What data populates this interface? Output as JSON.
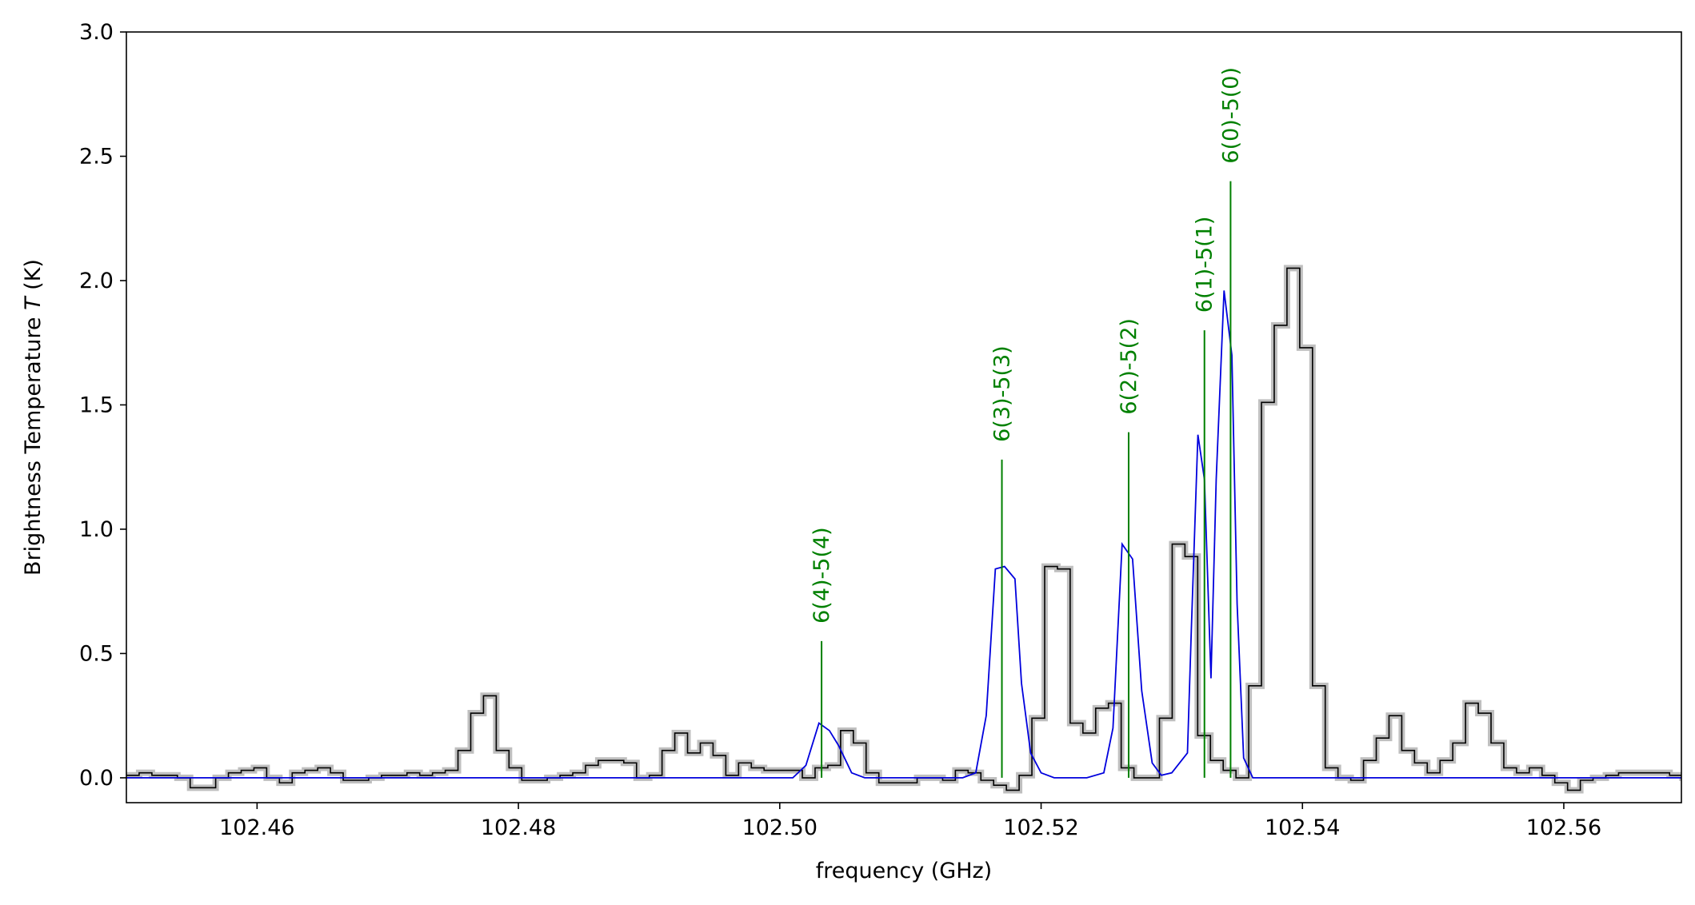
{
  "chart_data": {
    "type": "line",
    "xlabel": "frequency (GHz)",
    "ylabel_prefix": "Brightness Temperature ",
    "ylabel_var": "T",
    "ylabel_suffix": " (K)",
    "xlim": [
      102.45,
      102.569
    ],
    "ylim": [
      -0.1,
      3.0
    ],
    "xticks": [
      102.46,
      102.48,
      102.5,
      102.52,
      102.54,
      102.56
    ],
    "xtick_labels": [
      "102.46",
      "102.48",
      "102.50",
      "102.52",
      "102.54",
      "102.56"
    ],
    "yticks": [
      0.0,
      0.5,
      1.0,
      1.5,
      2.0,
      2.5,
      3.0
    ],
    "ytick_labels": [
      "0.0",
      "0.5",
      "1.0",
      "1.5",
      "2.0",
      "2.5",
      "3.0"
    ],
    "grid": false,
    "colors": {
      "spectrum": "#000000",
      "spectrum_shade": "#aaaaaa",
      "model": "#0000dd",
      "lines": "#008000",
      "axes": "#000000"
    },
    "series": [
      {
        "role": "observed-spectrum",
        "style": "step",
        "x0": 102.45,
        "dx": 0.000976,
        "values": [
          0.01,
          0.02,
          0.01,
          0.01,
          0.0,
          -0.04,
          -0.04,
          0.0,
          0.02,
          0.03,
          0.04,
          0.0,
          -0.02,
          0.02,
          0.03,
          0.04,
          0.02,
          -0.01,
          -0.01,
          0.0,
          0.01,
          0.01,
          0.02,
          0.01,
          0.02,
          0.03,
          0.11,
          0.26,
          0.33,
          0.11,
          0.04,
          -0.01,
          -0.01,
          0.0,
          0.01,
          0.02,
          0.05,
          0.07,
          0.07,
          0.06,
          0.0,
          0.01,
          0.11,
          0.18,
          0.1,
          0.14,
          0.09,
          0.01,
          0.06,
          0.04,
          0.03,
          0.03,
          0.03,
          0.0,
          0.04,
          0.05,
          0.19,
          0.14,
          0.02,
          -0.02,
          -0.02,
          -0.02,
          0.0,
          0.0,
          -0.01,
          0.03,
          0.02,
          -0.01,
          -0.03,
          -0.05,
          0.01,
          0.24,
          0.85,
          0.84,
          0.22,
          0.18,
          0.28,
          0.3,
          0.04,
          0.0,
          0.0,
          0.24,
          0.94,
          0.89,
          0.17,
          0.07,
          0.03,
          0.0,
          0.37,
          1.51,
          1.82,
          2.05,
          1.73,
          0.37,
          0.04,
          0.0,
          -0.01,
          0.07,
          0.16,
          0.25,
          0.11,
          0.06,
          0.02,
          0.07,
          0.14,
          0.3,
          0.26,
          0.14,
          0.04,
          0.02,
          0.04,
          0.01,
          -0.02,
          -0.05,
          -0.01,
          0.0,
          0.01,
          0.02,
          0.02,
          0.02,
          0.02,
          0.01,
          0.0,
          -0.02,
          -0.01,
          -0.02,
          0.02,
          0.03
        ]
      },
      {
        "role": "model-fit",
        "style": "line",
        "points": [
          [
            102.45,
            0.0
          ],
          [
            102.501,
            0.0
          ],
          [
            102.502,
            0.05
          ],
          [
            102.503,
            0.22
          ],
          [
            102.5038,
            0.19
          ],
          [
            102.5045,
            0.13
          ],
          [
            102.5055,
            0.02
          ],
          [
            102.5065,
            0.0
          ],
          [
            102.514,
            0.0
          ],
          [
            102.515,
            0.02
          ],
          [
            102.5158,
            0.25
          ],
          [
            102.5165,
            0.84
          ],
          [
            102.5172,
            0.85
          ],
          [
            102.518,
            0.8
          ],
          [
            102.5185,
            0.38
          ],
          [
            102.5192,
            0.1
          ],
          [
            102.52,
            0.02
          ],
          [
            102.521,
            0.0
          ],
          [
            102.5235,
            0.0
          ],
          [
            102.5248,
            0.02
          ],
          [
            102.5255,
            0.2
          ],
          [
            102.5262,
            0.94
          ],
          [
            102.527,
            0.88
          ],
          [
            102.5277,
            0.35
          ],
          [
            102.5285,
            0.06
          ],
          [
            102.5292,
            0.01
          ],
          [
            102.53,
            0.02
          ],
          [
            102.5312,
            0.1
          ],
          [
            102.5315,
            0.6
          ],
          [
            102.532,
            1.38
          ],
          [
            102.5325,
            1.2
          ],
          [
            102.533,
            0.4
          ],
          [
            102.5334,
            1.2
          ],
          [
            102.534,
            1.96
          ],
          [
            102.5346,
            1.7
          ],
          [
            102.535,
            0.7
          ],
          [
            102.5355,
            0.08
          ],
          [
            102.5362,
            0.0
          ],
          [
            102.569,
            0.0
          ]
        ]
      }
    ],
    "annotations": [
      {
        "label": "6(4)-5(4)",
        "x": 102.5032,
        "y_top": 0.55
      },
      {
        "label": "6(3)-5(3)",
        "x": 102.517,
        "y_top": 1.28
      },
      {
        "label": "6(2)-5(2)",
        "x": 102.5267,
        "y_top": 1.39
      },
      {
        "label": "6(1)-5(1)",
        "x": 102.5325,
        "y_top": 1.8
      },
      {
        "label": "6(0)-5(0)",
        "x": 102.5345,
        "y_top": 2.4
      }
    ]
  }
}
